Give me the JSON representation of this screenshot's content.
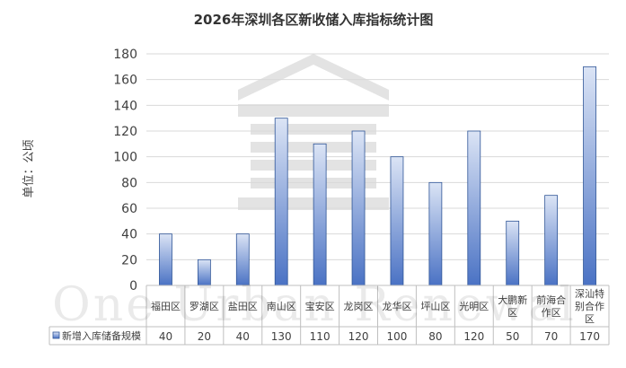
{
  "chart_data": {
    "type": "bar",
    "title": "2026年深圳各区新收储入库指标统计图",
    "ylabel": "单位：公顷",
    "xlabel": "",
    "ylim": [
      0,
      180
    ],
    "y_ticks": [
      0,
      20,
      40,
      60,
      80,
      100,
      120,
      140,
      160,
      180
    ],
    "grid": true,
    "legend": "in-table",
    "categories": [
      [
        "福田区"
      ],
      [
        "罗湖区"
      ],
      [
        "盐田区"
      ],
      [
        "南山区"
      ],
      [
        "宝安区"
      ],
      [
        "龙岗区"
      ],
      [
        "龙华区"
      ],
      [
        "坪山区"
      ],
      [
        "光明区"
      ],
      [
        "大鹏新",
        "区"
      ],
      [
        "前海合",
        "作区"
      ],
      [
        "深汕特",
        "别合作",
        "区"
      ]
    ],
    "series": [
      {
        "name": "新增入库储备规模",
        "values": [
          40,
          20,
          40,
          130,
          110,
          120,
          100,
          80,
          120,
          50,
          70,
          170
        ]
      }
    ],
    "colors": {
      "bar_light": "#dbe4f5",
      "bar_dark": "#4a72c4",
      "bar_border": "#2f5597",
      "grid": "#d9d9d9",
      "table_border": "#bfbfbf"
    },
    "watermark": "One Urban Renewal"
  }
}
